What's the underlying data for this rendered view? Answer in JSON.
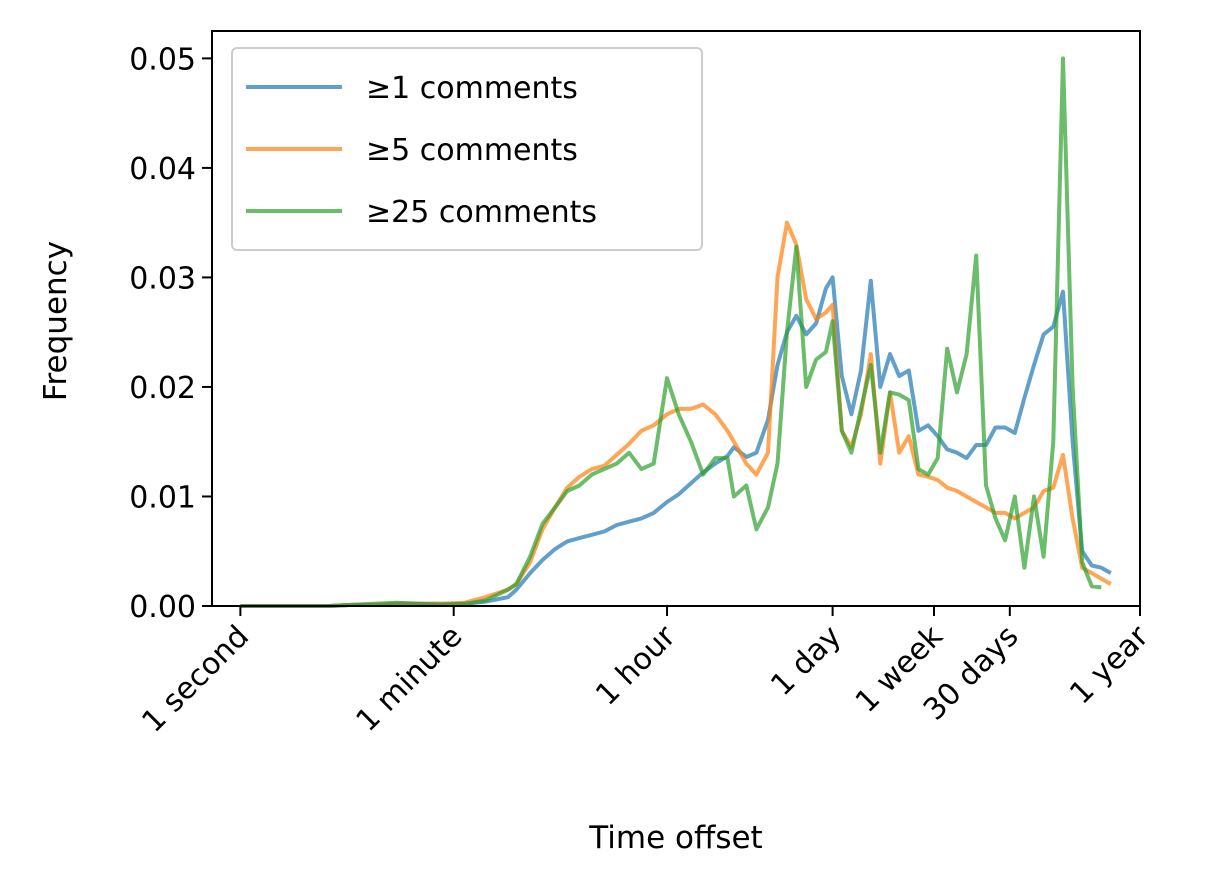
{
  "chart_data": {
    "type": "line",
    "xlabel": "Time offset",
    "ylabel": "Frequency",
    "xscale": "log",
    "x_unit": "seconds",
    "xlim": [
      0.58,
      31536000
    ],
    "ylim": [
      0,
      0.0525
    ],
    "grid": false,
    "legend_position": "upper left",
    "x_ticks": [
      {
        "value": 1,
        "label": "1 second"
      },
      {
        "value": 60,
        "label": "1 minute"
      },
      {
        "value": 3600,
        "label": "1 hour"
      },
      {
        "value": 86400,
        "label": "1 day"
      },
      {
        "value": 604800,
        "label": "1 week"
      },
      {
        "value": 2592000,
        "label": "30 days"
      },
      {
        "value": 31536000,
        "label": "1 year"
      }
    ],
    "y_ticks": [
      {
        "value": 0.0,
        "label": "0.00"
      },
      {
        "value": 0.01,
        "label": "0.01"
      },
      {
        "value": 0.02,
        "label": "0.02"
      },
      {
        "value": 0.03,
        "label": "0.03"
      },
      {
        "value": 0.04,
        "label": "0.04"
      },
      {
        "value": 0.05,
        "label": "0.05"
      }
    ],
    "series": [
      {
        "name": "≥1 comments",
        "color": "#1f77b4",
        "points": [
          [
            1,
            0.0
          ],
          [
            1.5,
            0.0
          ],
          [
            2.3,
            0.0
          ],
          [
            3.6,
            0.0
          ],
          [
            5.5,
            0.0
          ],
          [
            8.4,
            0.0001
          ],
          [
            13,
            0.0001
          ],
          [
            20,
            0.0002
          ],
          [
            31,
            0.0002
          ],
          [
            48,
            0.0002
          ],
          [
            74,
            0.0002
          ],
          [
            110,
            0.0004
          ],
          [
            170,
            0.0008
          ],
          [
            200,
            0.0015
          ],
          [
            260,
            0.003
          ],
          [
            330,
            0.0042
          ],
          [
            420,
            0.0052
          ],
          [
            530,
            0.0059
          ],
          [
            670,
            0.0062
          ],
          [
            850,
            0.0065
          ],
          [
            1080,
            0.0068
          ],
          [
            1370,
            0.0074
          ],
          [
            1740,
            0.0077
          ],
          [
            2200,
            0.008
          ],
          [
            2790,
            0.0085
          ],
          [
            3600,
            0.0095
          ],
          [
            4500,
            0.0102
          ],
          [
            5700,
            0.0112
          ],
          [
            7200,
            0.0122
          ],
          [
            9100,
            0.013
          ],
          [
            11500,
            0.0137
          ],
          [
            13000,
            0.0145
          ],
          [
            16500,
            0.0136
          ],
          [
            20000,
            0.014
          ],
          [
            25000,
            0.017
          ],
          [
            30000,
            0.022
          ],
          [
            36000,
            0.025
          ],
          [
            43000,
            0.0265
          ],
          [
            52000,
            0.0248
          ],
          [
            63000,
            0.0258
          ],
          [
            76000,
            0.029
          ],
          [
            86400,
            0.03
          ],
          [
            103000,
            0.021
          ],
          [
            124000,
            0.0175
          ],
          [
            149000,
            0.0215
          ],
          [
            180000,
            0.0297
          ],
          [
            216000,
            0.02
          ],
          [
            260000,
            0.023
          ],
          [
            310000,
            0.021
          ],
          [
            373000,
            0.0215
          ],
          [
            449000,
            0.016
          ],
          [
            540000,
            0.0165
          ],
          [
            650000,
            0.0155
          ],
          [
            780000,
            0.0143
          ],
          [
            940000,
            0.014
          ],
          [
            1130000,
            0.0135
          ],
          [
            1360000,
            0.0147
          ],
          [
            1640000,
            0.0147
          ],
          [
            1970000,
            0.0163
          ],
          [
            2370000,
            0.0163
          ],
          [
            2850000,
            0.0158
          ],
          [
            3430000,
            0.019
          ],
          [
            4120000,
            0.022
          ],
          [
            4960000,
            0.0248
          ],
          [
            5970000,
            0.0255
          ],
          [
            7190000,
            0.0287
          ],
          [
            8650000,
            0.015
          ],
          [
            10400000,
            0.005
          ],
          [
            12500000,
            0.0037
          ],
          [
            15000000,
            0.0035
          ],
          [
            18000000,
            0.003
          ]
        ]
      },
      {
        "name": "≥5 comments",
        "color": "#ff7f0e",
        "points": [
          [
            1,
            0.0
          ],
          [
            1.5,
            0.0
          ],
          [
            2.3,
            0.0
          ],
          [
            3.6,
            0.0
          ],
          [
            5.5,
            0.0
          ],
          [
            8.4,
            0.0001
          ],
          [
            13,
            0.0001
          ],
          [
            20,
            0.0002
          ],
          [
            31,
            0.0002
          ],
          [
            48,
            0.0002
          ],
          [
            74,
            0.0003
          ],
          [
            110,
            0.0008
          ],
          [
            170,
            0.0015
          ],
          [
            200,
            0.002
          ],
          [
            260,
            0.004
          ],
          [
            330,
            0.007
          ],
          [
            420,
            0.009
          ],
          [
            530,
            0.0108
          ],
          [
            670,
            0.0118
          ],
          [
            850,
            0.0125
          ],
          [
            1080,
            0.0128
          ],
          [
            1370,
            0.0138
          ],
          [
            1740,
            0.0148
          ],
          [
            2200,
            0.016
          ],
          [
            2790,
            0.0165
          ],
          [
            3600,
            0.0175
          ],
          [
            4500,
            0.018
          ],
          [
            5700,
            0.018
          ],
          [
            7200,
            0.0184
          ],
          [
            9100,
            0.0175
          ],
          [
            11500,
            0.016
          ],
          [
            13000,
            0.015
          ],
          [
            16500,
            0.013
          ],
          [
            20000,
            0.012
          ],
          [
            25000,
            0.014
          ],
          [
            30000,
            0.03
          ],
          [
            36000,
            0.035
          ],
          [
            43000,
            0.033
          ],
          [
            52000,
            0.028
          ],
          [
            63000,
            0.0262
          ],
          [
            76000,
            0.0268
          ],
          [
            86400,
            0.0275
          ],
          [
            103000,
            0.016
          ],
          [
            124000,
            0.0145
          ],
          [
            149000,
            0.0175
          ],
          [
            180000,
            0.023
          ],
          [
            216000,
            0.013
          ],
          [
            260000,
            0.0195
          ],
          [
            310000,
            0.014
          ],
          [
            373000,
            0.0155
          ],
          [
            449000,
            0.012
          ],
          [
            540000,
            0.0118
          ],
          [
            650000,
            0.0115
          ],
          [
            780000,
            0.0108
          ],
          [
            940000,
            0.0105
          ],
          [
            1130000,
            0.01
          ],
          [
            1360000,
            0.0095
          ],
          [
            1640000,
            0.009
          ],
          [
            1970000,
            0.0085
          ],
          [
            2370000,
            0.0085
          ],
          [
            2850000,
            0.008
          ],
          [
            3430000,
            0.0085
          ],
          [
            4120000,
            0.009
          ],
          [
            4960000,
            0.0105
          ],
          [
            5970000,
            0.0108
          ],
          [
            7190000,
            0.0138
          ],
          [
            8650000,
            0.008
          ],
          [
            10400000,
            0.0035
          ],
          [
            12500000,
            0.003
          ],
          [
            15000000,
            0.0025
          ],
          [
            18000000,
            0.002
          ]
        ]
      },
      {
        "name": "≥25 comments",
        "color": "#2ca02c",
        "points": [
          [
            1,
            0.0
          ],
          [
            1.5,
            0.0
          ],
          [
            2.3,
            0.0
          ],
          [
            3.6,
            0.0
          ],
          [
            5.5,
            0.0
          ],
          [
            8.4,
            0.0001
          ],
          [
            13,
            0.0002
          ],
          [
            20,
            0.0003
          ],
          [
            31,
            0.0002
          ],
          [
            48,
            0.0001
          ],
          [
            74,
            0.0002
          ],
          [
            110,
            0.0005
          ],
          [
            170,
            0.0015
          ],
          [
            200,
            0.002
          ],
          [
            260,
            0.0045
          ],
          [
            330,
            0.0075
          ],
          [
            420,
            0.009
          ],
          [
            530,
            0.0105
          ],
          [
            670,
            0.011
          ],
          [
            850,
            0.012
          ],
          [
            1080,
            0.0125
          ],
          [
            1370,
            0.013
          ],
          [
            1740,
            0.014
          ],
          [
            2200,
            0.0125
          ],
          [
            2790,
            0.013
          ],
          [
            3600,
            0.0208
          ],
          [
            4500,
            0.0175
          ],
          [
            5700,
            0.015
          ],
          [
            7200,
            0.012
          ],
          [
            9100,
            0.0135
          ],
          [
            11500,
            0.0135
          ],
          [
            13000,
            0.01
          ],
          [
            16500,
            0.011
          ],
          [
            20000,
            0.007
          ],
          [
            25000,
            0.009
          ],
          [
            30000,
            0.013
          ],
          [
            36000,
            0.025
          ],
          [
            43000,
            0.0328
          ],
          [
            52000,
            0.02
          ],
          [
            63000,
            0.0225
          ],
          [
            76000,
            0.0232
          ],
          [
            86400,
            0.026
          ],
          [
            103000,
            0.016
          ],
          [
            124000,
            0.014
          ],
          [
            149000,
            0.018
          ],
          [
            180000,
            0.022
          ],
          [
            216000,
            0.014
          ],
          [
            260000,
            0.0195
          ],
          [
            310000,
            0.0193
          ],
          [
            373000,
            0.0188
          ],
          [
            449000,
            0.0125
          ],
          [
            540000,
            0.012
          ],
          [
            650000,
            0.0135
          ],
          [
            780000,
            0.0235
          ],
          [
            940000,
            0.0195
          ],
          [
            1130000,
            0.023
          ],
          [
            1360000,
            0.032
          ],
          [
            1640000,
            0.011
          ],
          [
            1970000,
            0.008
          ],
          [
            2370000,
            0.006
          ],
          [
            2850000,
            0.01
          ],
          [
            3430000,
            0.0035
          ],
          [
            4120000,
            0.01
          ],
          [
            4960000,
            0.0045
          ],
          [
            5970000,
            0.015
          ],
          [
            7190000,
            0.05
          ],
          [
            8650000,
            0.02
          ],
          [
            10400000,
            0.004
          ],
          [
            12500000,
            0.0018
          ],
          [
            15000000,
            0.0017
          ]
        ]
      }
    ]
  }
}
